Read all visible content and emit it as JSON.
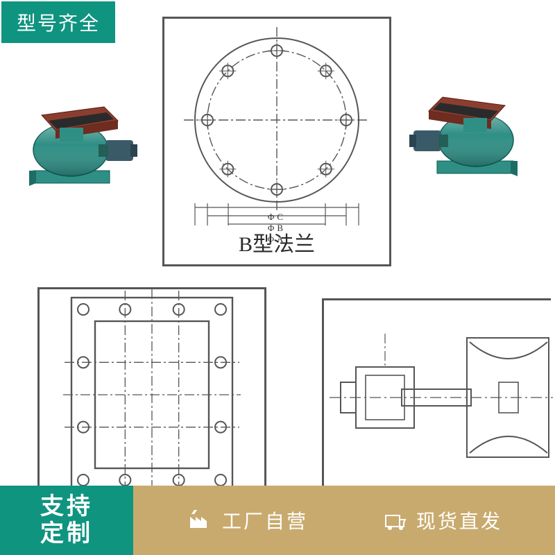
{
  "colors": {
    "badge_green": "#0f9480",
    "ribbon_gold": "#c9aa6e",
    "valve_body": "#2f8f85",
    "valve_top": "#8b3e2f",
    "motor": "#3b5a68",
    "stroke": "#555555",
    "dashed": "#555555"
  },
  "top_badge": "型号齐全",
  "flange_b": {
    "caption": "B型法兰",
    "dims": [
      "ΦC",
      "ΦB",
      "ΦA"
    ],
    "outer_r": 118,
    "bolt_r": 100,
    "bolt_count": 8
  },
  "flange_square": {
    "cols": 4,
    "rows": 4
  },
  "bottom": {
    "left": "支持\n定制",
    "features": [
      {
        "icon": "factory",
        "text": "工厂自营"
      },
      {
        "icon": "stock",
        "text": "现货直发"
      }
    ]
  }
}
